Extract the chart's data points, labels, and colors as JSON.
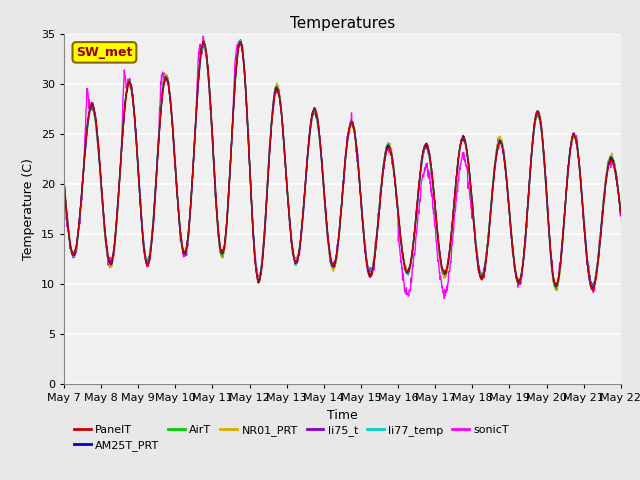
{
  "title": "Temperatures",
  "xlabel": "Time",
  "ylabel": "Temperature (C)",
  "ylim": [
    0,
    35
  ],
  "yticks": [
    0,
    5,
    10,
    15,
    20,
    25,
    30,
    35
  ],
  "x_tick_labels": [
    "May 7",
    "May 8",
    "May 9",
    "May 10",
    "May 11",
    "May 12",
    "May 13",
    "May 14",
    "May 15",
    "May 16",
    "May 17",
    "May 18",
    "May 19",
    "May 20",
    "May 21",
    "May 22"
  ],
  "series_colors": {
    "PanelT": "#cc0000",
    "AM25T_PRT": "#0000cc",
    "AirT": "#00cc00",
    "NR01_PRT": "#ddaa00",
    "li75_t": "#8800cc",
    "li77_temp": "#00cccc",
    "sonicT": "#ff00ff"
  },
  "annotation_text": "SW_met",
  "annotation_bg": "#ffff00",
  "annotation_border": "#886600",
  "annotation_text_color": "#990000",
  "fig_facecolor": "#e8e8e8",
  "plot_facecolor": "#f0f0f0",
  "legend_fontsize": 8,
  "title_fontsize": 11,
  "axis_fontsize": 8,
  "lw": 1.0
}
